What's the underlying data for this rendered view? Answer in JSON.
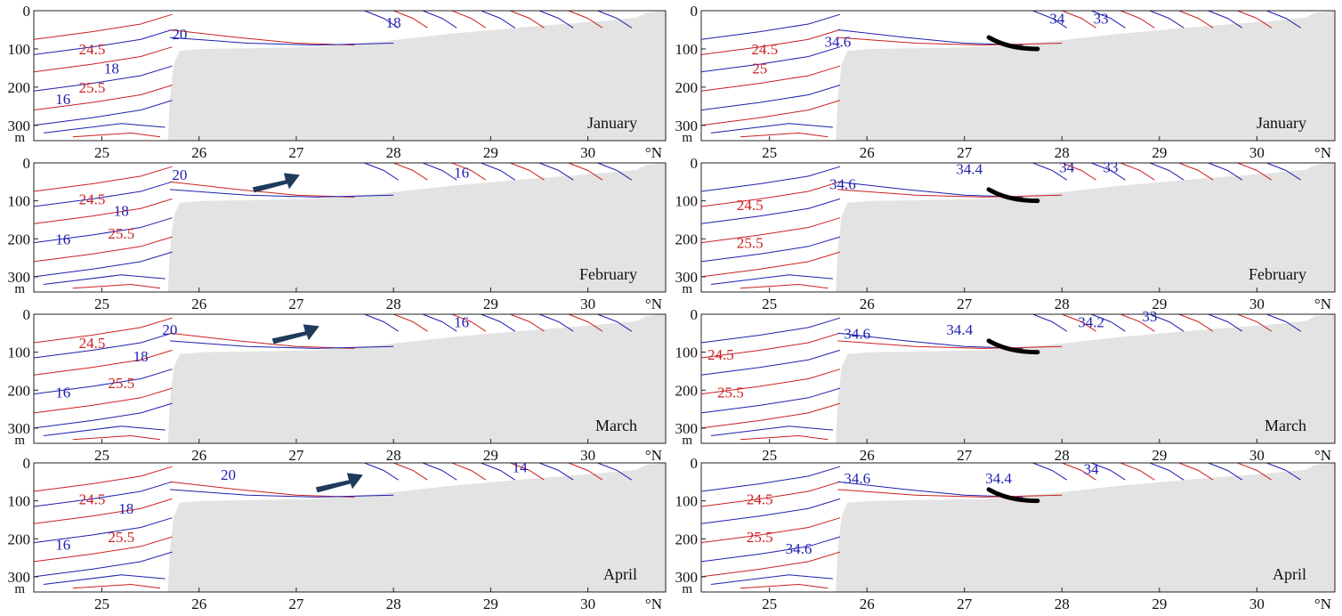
{
  "chart_data": [
    {
      "type": "contour",
      "variable": "temperature_density",
      "month": "January",
      "column": "left",
      "xlabel": "°N",
      "ylabel": "m",
      "xlim": [
        24.3,
        30.8
      ],
      "ylim": [
        0,
        340
      ],
      "xticks": [
        "25",
        "26",
        "27",
        "28",
        "29",
        "30"
      ],
      "yticks": [
        "0",
        "100",
        "200",
        "300"
      ],
      "blue_labels": [
        {
          "text": "20",
          "x": 25.8,
          "y": 60
        },
        {
          "text": "18",
          "x": 25.1,
          "y": 150
        },
        {
          "text": "16",
          "x": 24.6,
          "y": 230
        },
        {
          "text": "18",
          "x": 28.0,
          "y": 30
        }
      ],
      "red_labels": [
        {
          "text": "24.5",
          "x": 24.9,
          "y": 100
        },
        {
          "text": "25.5",
          "x": 24.9,
          "y": 200
        }
      ],
      "arrow": null
    },
    {
      "type": "contour",
      "variable": "salinity_density",
      "month": "January",
      "column": "right",
      "xlabel": "°N",
      "ylabel": "m",
      "xlim": [
        24.3,
        30.8
      ],
      "ylim": [
        0,
        340
      ],
      "xticks": [
        "25",
        "26",
        "27",
        "28",
        "29",
        "30"
      ],
      "yticks": [
        "0",
        "100",
        "200",
        "300"
      ],
      "blue_labels": [
        {
          "text": "34.6",
          "x": 25.7,
          "y": 80
        },
        {
          "text": "34",
          "x": 27.95,
          "y": 20
        },
        {
          "text": "33",
          "x": 28.4,
          "y": 20
        }
      ],
      "red_labels": [
        {
          "text": "24.5",
          "x": 24.95,
          "y": 100
        },
        {
          "text": "25",
          "x": 24.9,
          "y": 150
        }
      ],
      "arrow": "black curve"
    },
    {
      "type": "contour",
      "variable": "temperature_density",
      "month": "February",
      "column": "left",
      "xlabel": "°N",
      "ylabel": "m",
      "xlim": [
        24.3,
        30.8
      ],
      "ylim": [
        0,
        340
      ],
      "xticks": [
        "25",
        "26",
        "27",
        "28",
        "29",
        "30"
      ],
      "yticks": [
        "0",
        "100",
        "200",
        "300"
      ],
      "blue_labels": [
        {
          "text": "20",
          "x": 25.8,
          "y": 30
        },
        {
          "text": "18",
          "x": 25.2,
          "y": 125
        },
        {
          "text": "16",
          "x": 24.6,
          "y": 200
        },
        {
          "text": "16",
          "x": 28.7,
          "y": 25
        }
      ],
      "red_labels": [
        {
          "text": "24.5",
          "x": 24.9,
          "y": 95
        },
        {
          "text": "25.5",
          "x": 25.2,
          "y": 185
        }
      ],
      "arrow": "blue arrow"
    },
    {
      "type": "contour",
      "variable": "salinity_density",
      "month": "February",
      "column": "right",
      "xlabel": "°N",
      "ylabel": "m",
      "xlim": [
        24.3,
        30.8
      ],
      "ylim": [
        0,
        340
      ],
      "xticks": [
        "25",
        "26",
        "27",
        "28",
        "29",
        "30"
      ],
      "yticks": [
        "0",
        "100",
        "200",
        "300"
      ],
      "blue_labels": [
        {
          "text": "34.6",
          "x": 25.75,
          "y": 55
        },
        {
          "text": "34.4",
          "x": 27.05,
          "y": 15
        },
        {
          "text": "34",
          "x": 28.05,
          "y": 10
        },
        {
          "text": "33",
          "x": 28.5,
          "y": 10
        }
      ],
      "red_labels": [
        {
          "text": "24.5",
          "x": 24.8,
          "y": 110
        },
        {
          "text": "25.5",
          "x": 24.8,
          "y": 210
        }
      ],
      "arrow": "black curve"
    },
    {
      "type": "contour",
      "variable": "temperature_density",
      "month": "March",
      "column": "left",
      "xlabel": "°N",
      "ylabel": "m",
      "xlim": [
        24.3,
        30.8
      ],
      "ylim": [
        0,
        340
      ],
      "xticks": [
        "25",
        "26",
        "27",
        "28",
        "29",
        "30"
      ],
      "yticks": [
        "0",
        "100",
        "200",
        "300"
      ],
      "blue_labels": [
        {
          "text": "20",
          "x": 25.7,
          "y": 40
        },
        {
          "text": "18",
          "x": 25.4,
          "y": 110
        },
        {
          "text": "16",
          "x": 24.6,
          "y": 205
        },
        {
          "text": "16",
          "x": 28.7,
          "y": 20
        }
      ],
      "red_labels": [
        {
          "text": "24.5",
          "x": 24.9,
          "y": 75
        },
        {
          "text": "25.5",
          "x": 25.2,
          "y": 180
        }
      ],
      "arrow": "blue arrow"
    },
    {
      "type": "contour",
      "variable": "salinity_density",
      "month": "March",
      "column": "right",
      "xlabel": "°N",
      "ylabel": "m",
      "xlim": [
        24.3,
        30.8
      ],
      "ylim": [
        0,
        340
      ],
      "xticks": [
        "25",
        "26",
        "27",
        "28",
        "29",
        "30"
      ],
      "yticks": [
        "0",
        "100",
        "200",
        "300"
      ],
      "blue_labels": [
        {
          "text": "34.6",
          "x": 25.9,
          "y": 50
        },
        {
          "text": "34.4",
          "x": 26.95,
          "y": 40
        },
        {
          "text": "34.2",
          "x": 28.3,
          "y": 20
        },
        {
          "text": "33",
          "x": 28.9,
          "y": 5
        }
      ],
      "red_labels": [
        {
          "text": "24.5",
          "x": 24.5,
          "y": 105
        },
        {
          "text": "25.5",
          "x": 24.6,
          "y": 205
        }
      ],
      "arrow": "black curve"
    },
    {
      "type": "contour",
      "variable": "temperature_density",
      "month": "April",
      "column": "left",
      "xlabel": "°N",
      "ylabel": "m",
      "xlim": [
        24.3,
        30.8
      ],
      "ylim": [
        0,
        340
      ],
      "xticks": [
        "25",
        "26",
        "27",
        "28",
        "29",
        "30"
      ],
      "yticks": [
        "0",
        "100",
        "200",
        "300"
      ],
      "blue_labels": [
        {
          "text": "20",
          "x": 26.3,
          "y": 30
        },
        {
          "text": "18",
          "x": 25.25,
          "y": 120
        },
        {
          "text": "16",
          "x": 24.6,
          "y": 215
        },
        {
          "text": "14",
          "x": 29.3,
          "y": 10
        }
      ],
      "red_labels": [
        {
          "text": "24.5",
          "x": 24.9,
          "y": 95
        },
        {
          "text": "25.5",
          "x": 25.2,
          "y": 195
        }
      ],
      "arrow": "blue arrow"
    },
    {
      "type": "contour",
      "variable": "salinity_density",
      "month": "April",
      "column": "right",
      "xlabel": "°N",
      "ylabel": "m",
      "xlim": [
        24.3,
        30.8
      ],
      "ylim": [
        0,
        340
      ],
      "xticks": [
        "25",
        "26",
        "27",
        "28",
        "29",
        "30"
      ],
      "yticks": [
        "0",
        "100",
        "200",
        "300"
      ],
      "blue_labels": [
        {
          "text": "34.6",
          "x": 25.9,
          "y": 40
        },
        {
          "text": "34.4",
          "x": 27.35,
          "y": 40
        },
        {
          "text": "34",
          "x": 28.3,
          "y": 15
        },
        {
          "text": "34.6",
          "x": 25.3,
          "y": 225
        }
      ],
      "red_labels": [
        {
          "text": "24.5",
          "x": 24.9,
          "y": 95
        },
        {
          "text": "25.5",
          "x": 24.9,
          "y": 195
        }
      ],
      "arrow": "black curve"
    }
  ]
}
